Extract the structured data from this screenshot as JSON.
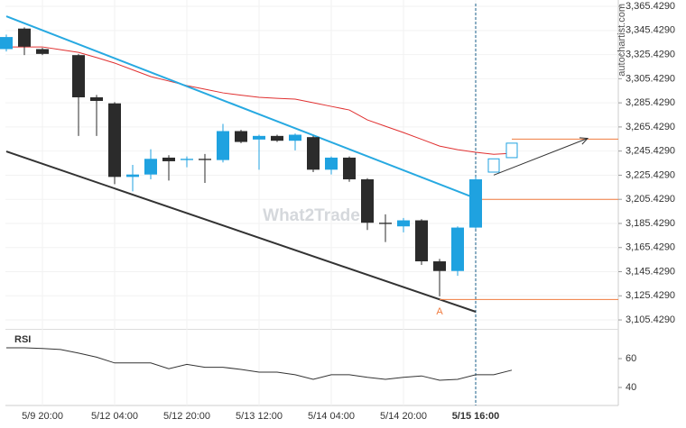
{
  "chart_data": {
    "type": "candlestick",
    "source": "autochartist.com",
    "watermark": "What2Trade",
    "categories": [
      null,
      null,
      "5/9 20:00",
      null,
      null,
      null,
      "5/12 04:00",
      null,
      null,
      null,
      "5/12 20:00",
      null,
      null,
      null,
      "5/13 12:00",
      null,
      null,
      null,
      "5/14 04:00",
      null,
      null,
      null,
      "5/14 20:00",
      null,
      null,
      null,
      "5/15 16:00",
      null,
      null
    ],
    "highlight_category": 26,
    "candles": [
      {
        "open": 3330,
        "high": 3342,
        "low": 3328,
        "close": 3340
      },
      {
        "open": 3347,
        "high": 3348,
        "low": 3325,
        "close": 3332
      },
      {
        "open": 3330,
        "high": 3331,
        "low": 3325,
        "close": 3326
      },
      null,
      {
        "open": 3325,
        "high": 3326,
        "low": 3258,
        "close": 3290
      },
      {
        "open": 3290,
        "high": 3292,
        "low": 3258,
        "close": 3287
      },
      {
        "open": 3285,
        "high": 3286,
        "low": 3218,
        "close": 3224
      },
      {
        "open": 3224,
        "high": 3234,
        "low": 3212,
        "close": 3226
      },
      {
        "open": 3226,
        "high": 3247,
        "low": 3222,
        "close": 3239
      },
      {
        "open": 3240,
        "high": 3242,
        "low": 3221,
        "close": 3237
      },
      {
        "open": 3238,
        "high": 3241,
        "low": 3232,
        "close": 3239
      },
      {
        "open": 3239,
        "high": 3243,
        "low": 3219,
        "close": 3238
      },
      {
        "open": 3238,
        "high": 3268,
        "low": 3236,
        "close": 3262
      },
      {
        "open": 3262,
        "high": 3263,
        "low": 3252,
        "close": 3253
      },
      {
        "open": 3255,
        "high": 3259,
        "low": 3230,
        "close": 3258
      },
      {
        "open": 3258,
        "high": 3259,
        "low": 3253,
        "close": 3254
      },
      {
        "open": 3254,
        "high": 3260,
        "low": 3246,
        "close": 3259
      },
      {
        "open": 3257,
        "high": 3258,
        "low": 3228,
        "close": 3230
      },
      {
        "open": 3230,
        "high": 3241,
        "low": 3226,
        "close": 3240
      },
      {
        "open": 3240,
        "high": 3241,
        "low": 3220,
        "close": 3222
      },
      {
        "open": 3222,
        "high": 3223,
        "low": 3180,
        "close": 3186
      },
      {
        "open": 3186,
        "high": 3193,
        "low": 3170,
        "close": 3185
      },
      {
        "open": 3183,
        "high": 3190,
        "low": 3178,
        "close": 3188
      },
      {
        "open": 3188,
        "high": 3189,
        "low": 3151,
        "close": 3154
      },
      {
        "open": 3154,
        "high": 3156,
        "low": 3125,
        "close": 3146
      },
      {
        "open": 3146,
        "high": 3183,
        "low": 3142,
        "close": 3182
      },
      {
        "open": 3182,
        "high": 3224,
        "low": 3181,
        "close": 3222
      }
    ],
    "projected_candles": [
      {
        "index": 27,
        "open": 3228,
        "close": 3239
      },
      {
        "index": 28,
        "open": 3240,
        "close": 3252
      }
    ],
    "up_color": "#1fa2e0",
    "down_color": "#2b2b2b",
    "moving_average": {
      "color": "#e03030",
      "values": [
        3331.8,
        3331.8,
        3331.8,
        3329.5,
        3327.3,
        3323,
        3318.4,
        3312.8,
        3307.2,
        3303.5,
        3299.7,
        3296.7,
        3293.7,
        3291.8,
        3290,
        3289.2,
        3288.5,
        3285.5,
        3282.5,
        3279.5,
        3271.3,
        3266,
        3260.8,
        3255.2,
        3249.6,
        3246.6,
        3244.4,
        3242.8,
        3243.6
      ]
    },
    "trend_lines": [
      {
        "color": "#27a9e1",
        "x": [
          0,
          26
        ],
        "values": [
          3357.2,
          3206.3
        ]
      },
      {
        "color": "#333333",
        "x": [
          0,
          26
        ],
        "values": [
          3245.1,
          3112.2
        ]
      }
    ],
    "levels": [
      {
        "value": 3255.4,
        "from": 28
      },
      {
        "value": 3205.4,
        "from": 26
      },
      {
        "value": 3122.4,
        "from": 24
      }
    ],
    "level_color": "#f07b3f",
    "arrow": {
      "x": [
        27,
        32.2
      ],
      "values": [
        3225.5,
        3256
      ]
    },
    "annotation": {
      "text": "A",
      "x": 24,
      "value": 3112
    },
    "xlim": [
      -0.05,
      33.9
    ],
    "ylim": [
      3098,
      3370.7
    ],
    "yticks": [
      {
        "value": 3365.429,
        "label": "3,365.4290"
      },
      {
        "value": 3345.429,
        "label": "3,345.4290"
      },
      {
        "value": 3325.429,
        "label": "3,325.4290"
      },
      {
        "value": 3305.429,
        "label": "3,305.4290"
      },
      {
        "value": 3285.429,
        "label": "3,285.4290"
      },
      {
        "value": 3265.429,
        "label": "3,265.4290"
      },
      {
        "value": 3245.429,
        "label": "3,245.4290"
      },
      {
        "value": 3225.429,
        "label": "3,225.4290"
      },
      {
        "value": 3205.429,
        "label": "3,205.4290"
      },
      {
        "value": 3185.429,
        "label": "3,185.4290"
      },
      {
        "value": 3165.429,
        "label": "3,165.4290"
      },
      {
        "value": 3145.429,
        "label": "3,145.4290"
      },
      {
        "value": 3125.429,
        "label": "3,125.4290"
      },
      {
        "value": 3105.429,
        "label": "3,105.4290"
      }
    ],
    "grid": true,
    "rsi": {
      "label": "RSI",
      "color": "#333333",
      "ylim": [
        27.5,
        80
      ],
      "yticks": [
        60,
        40
      ],
      "values": [
        67.5,
        67.5,
        67,
        66.3,
        63.8,
        61,
        57,
        57,
        57,
        53,
        56,
        54,
        54,
        52.5,
        50.6,
        50.6,
        48.8,
        45.6,
        48.8,
        48.8,
        47,
        45.6,
        47,
        48,
        45,
        45.6,
        48.8,
        48.8,
        52
      ]
    }
  }
}
